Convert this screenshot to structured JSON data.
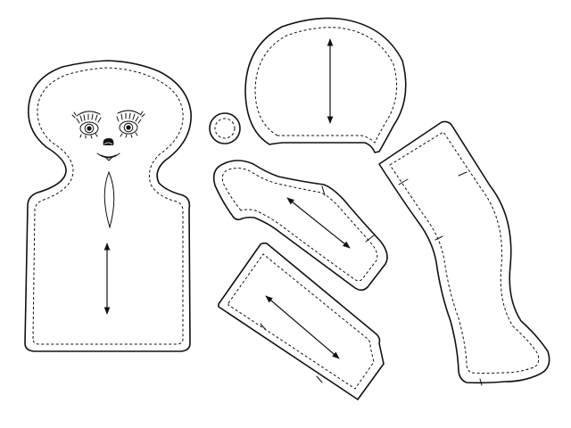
{
  "sheet": {
    "pieces": [
      {
        "piece": "head-body",
        "features": [
          "face",
          "grain-arrow",
          "dart"
        ]
      },
      {
        "piece": "cap",
        "features": [
          "grain-arrow"
        ]
      },
      {
        "piece": "nose-circle",
        "features": []
      },
      {
        "piece": "arm",
        "features": [
          "grain-arrow",
          "notch"
        ]
      },
      {
        "piece": "sleeve",
        "features": [
          "grain-arrow",
          "notch"
        ]
      },
      {
        "piece": "leg",
        "features": [
          "notch"
        ]
      }
    ]
  }
}
